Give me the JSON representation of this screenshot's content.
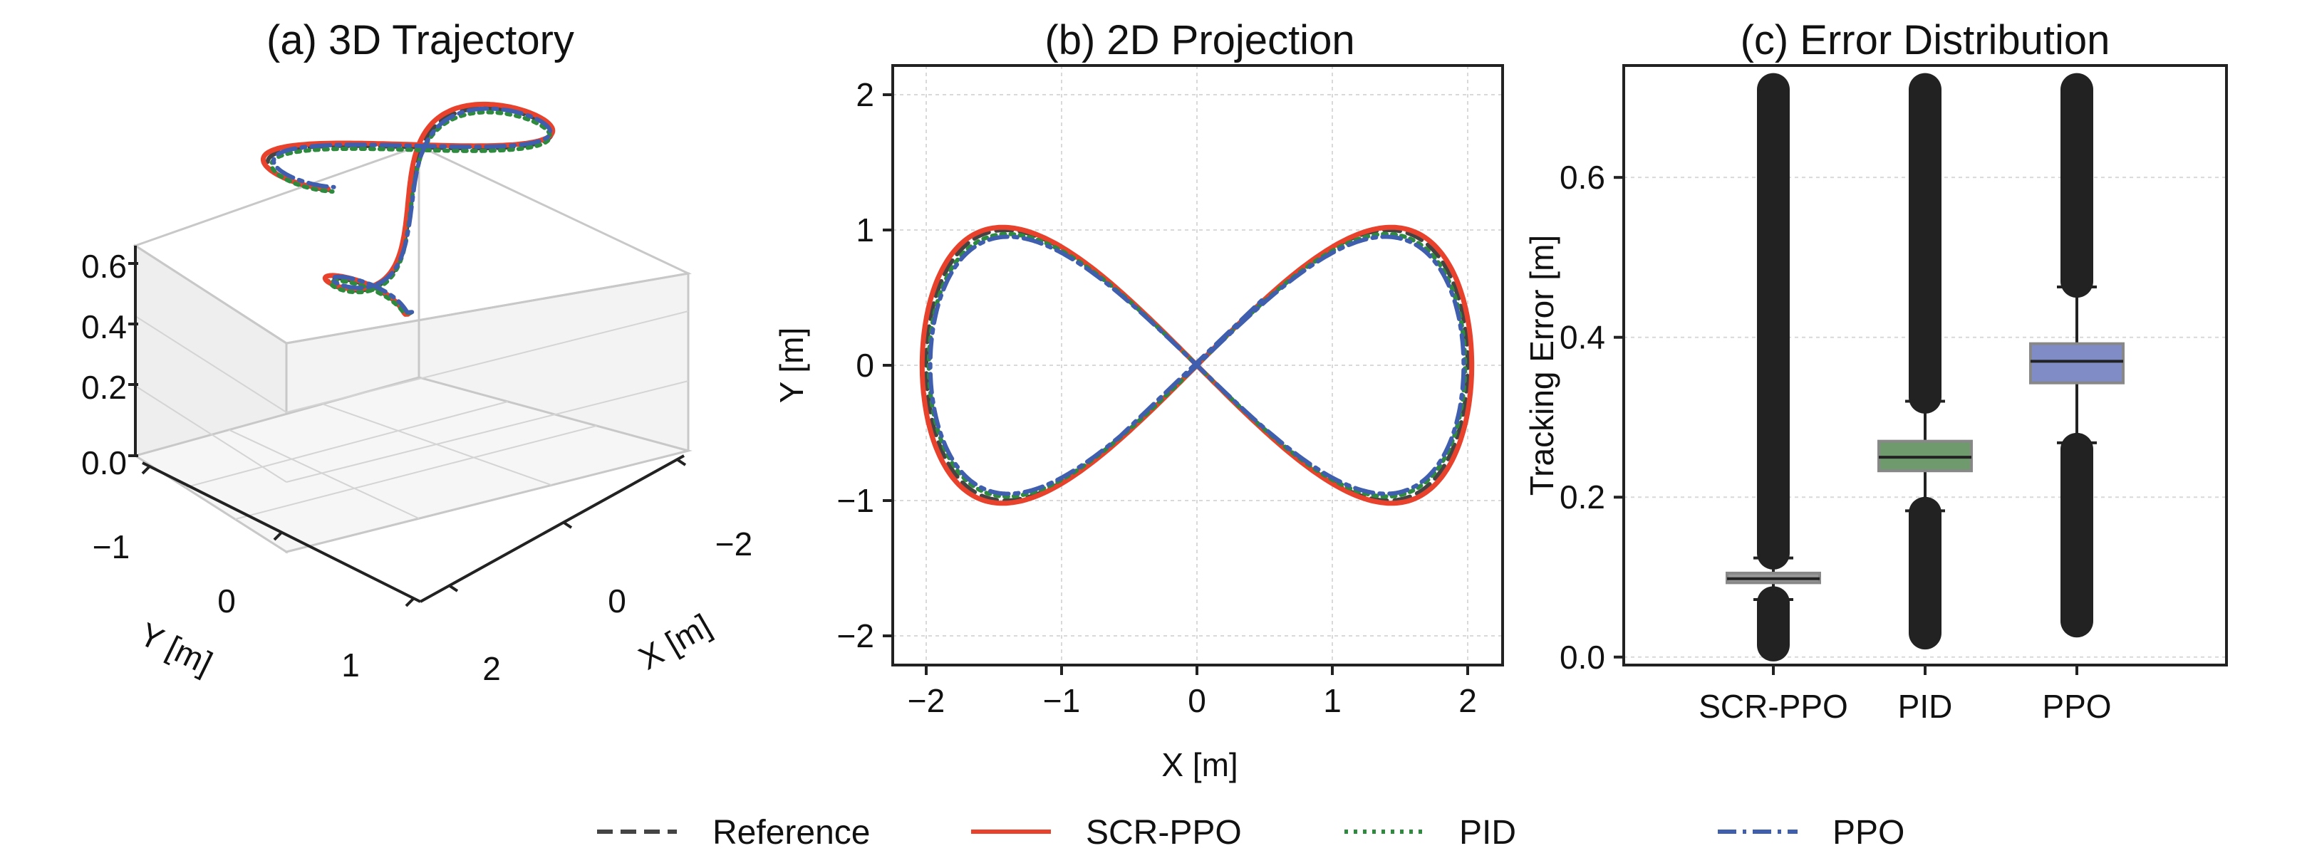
{
  "chart_data": [
    {
      "type": "line3d",
      "title": "(a) 3D Trajectory",
      "xlabel": "X [m]",
      "ylabel": "Y [m]",
      "zlabel": "",
      "xticks": [
        "−2",
        "0",
        "2"
      ],
      "yticks": [
        "−1",
        "0",
        "1"
      ],
      "zticks": [
        "0.0",
        "0.2",
        "0.4",
        "0.6"
      ],
      "xlim": [
        -2.2,
        2.2
      ],
      "ylim": [
        -1.3,
        1.3
      ],
      "zlim": [
        0,
        0.6
      ],
      "curve": "figure-eight x = 2cos(t), y = sin(2t), z rising from 0 to 0.6",
      "series": [
        {
          "name": "Reference"
        },
        {
          "name": "SCR-PPO"
        },
        {
          "name": "PID"
        },
        {
          "name": "PPO"
        }
      ]
    },
    {
      "type": "line",
      "title": "(b) 2D Projection",
      "xlabel": "X [m]",
      "ylabel": "Y [m]",
      "xticks": [
        "−2",
        "−1",
        "0",
        "1",
        "2"
      ],
      "yticks": [
        "−2",
        "−1",
        "0",
        "1",
        "2"
      ],
      "xlim": [
        -2.2,
        2.2
      ],
      "ylim": [
        -2.2,
        2.2
      ],
      "grid": true,
      "series": [
        {
          "name": "Reference",
          "shape": "x = 2sin(t), y = sin(2t)"
        },
        {
          "name": "SCR-PPO",
          "shape": "figure-eight, amplitude ~1.0"
        },
        {
          "name": "PID",
          "shape": "figure-eight, amplitude ~0.96"
        },
        {
          "name": "PPO",
          "shape": "figure-eight, amplitude ~0.95, ends near (0.5, 0.5)"
        }
      ]
    },
    {
      "type": "box",
      "title": "(c) Error Distribution",
      "xlabel": "",
      "ylabel": "Tracking Error [m]",
      "categories": [
        "SCR-PPO",
        "PID",
        "PPO"
      ],
      "yticks": [
        "0.0",
        "0.2",
        "0.4",
        "0.6"
      ],
      "ylim": [
        -0.01,
        0.74
      ],
      "boxes": [
        {
          "name": "SCR-PPO",
          "color": "#999999",
          "q1": 0.093,
          "median": 0.098,
          "q3": 0.105,
          "whisker_low": 0.072,
          "whisker_high": 0.124,
          "outliers_low": [
            0.015,
            0.068
          ],
          "outliers_high": [
            0.13,
            0.71
          ]
        },
        {
          "name": "PID",
          "color": "#6e9a6e",
          "q1": 0.233,
          "median": 0.25,
          "q3": 0.27,
          "whisker_low": 0.183,
          "whisker_high": 0.32,
          "outliers_low": [
            0.03,
            0.18
          ],
          "outliers_high": [
            0.325,
            0.71
          ]
        },
        {
          "name": "PPO",
          "color": "#7f8cc6",
          "q1": 0.343,
          "median": 0.37,
          "q3": 0.392,
          "whisker_low": 0.268,
          "whisker_high": 0.463,
          "outliers_low": [
            0.045,
            0.26
          ],
          "outliers_high": [
            0.47,
            0.71
          ]
        }
      ]
    }
  ],
  "legend": [
    {
      "label": "Reference",
      "color": "#444444",
      "style": "dashed"
    },
    {
      "label": "SCR-PPO",
      "color": "#e8412c",
      "style": "solid"
    },
    {
      "label": "PID",
      "color": "#2e8b3e",
      "style": "dotted"
    },
    {
      "label": "PPO",
      "color": "#3f5fae",
      "style": "dashdot"
    }
  ]
}
